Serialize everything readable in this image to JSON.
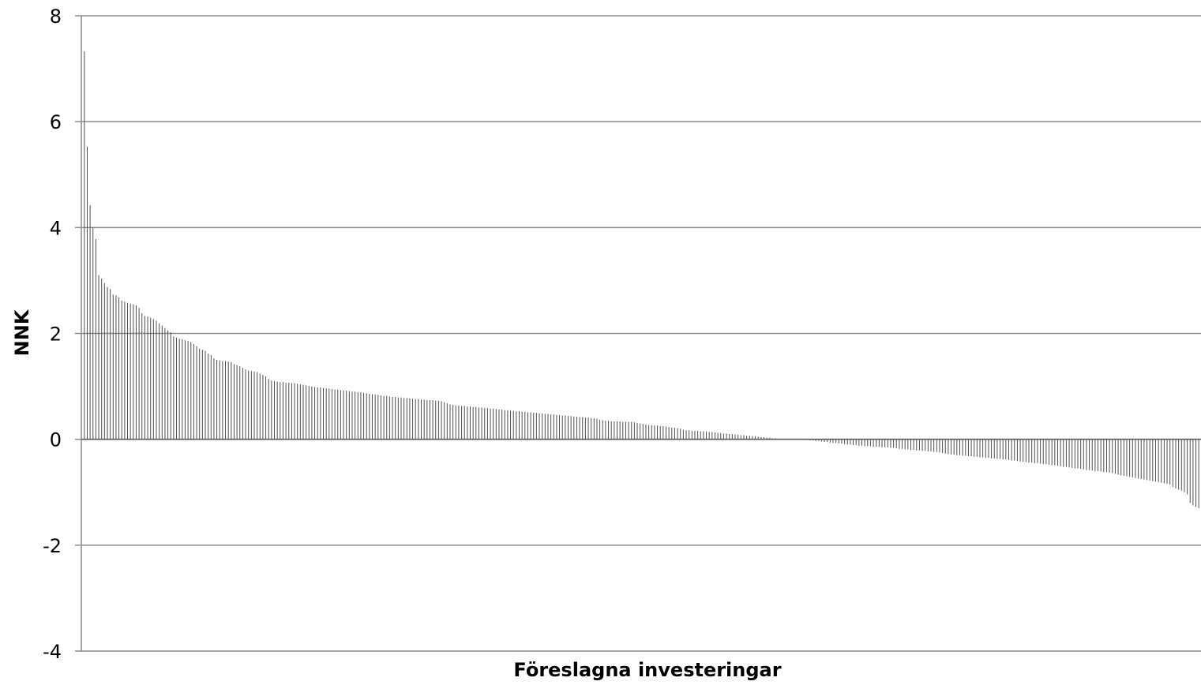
{
  "chart_data": {
    "type": "bar",
    "title": "",
    "xlabel": "Föreslagna investeringar",
    "ylabel": "NNK",
    "ylim": [
      -4,
      8
    ],
    "yticks": [
      8,
      6,
      4,
      2,
      0,
      -2,
      -4
    ],
    "ytick_labels": [
      "8",
      "6",
      "4",
      "2",
      "0",
      "-2",
      "-4"
    ],
    "grid": true,
    "legend": "none",
    "bar_color": "#4d4d4d",
    "grid_color": "#8c8c8c",
    "values": [
      7.33,
      5.53,
      4.42,
      4.0,
      3.78,
      3.1,
      3.04,
      2.95,
      2.88,
      2.84,
      2.73,
      2.72,
      2.68,
      2.62,
      2.6,
      2.58,
      2.56,
      2.55,
      2.53,
      2.48,
      2.38,
      2.33,
      2.32,
      2.3,
      2.27,
      2.24,
      2.19,
      2.15,
      2.1,
      2.06,
      2.02,
      1.94,
      1.92,
      1.9,
      1.89,
      1.87,
      1.86,
      1.84,
      1.8,
      1.76,
      1.71,
      1.69,
      1.67,
      1.62,
      1.59,
      1.53,
      1.5,
      1.49,
      1.48,
      1.48,
      1.47,
      1.46,
      1.42,
      1.4,
      1.38,
      1.35,
      1.32,
      1.3,
      1.29,
      1.28,
      1.27,
      1.24,
      1.22,
      1.19,
      1.14,
      1.11,
      1.1,
      1.09,
      1.08,
      1.08,
      1.07,
      1.07,
      1.06,
      1.06,
      1.05,
      1.04,
      1.03,
      1.02,
      1.01,
      1.0,
      0.99,
      0.98,
      0.98,
      0.97,
      0.96,
      0.96,
      0.95,
      0.94,
      0.94,
      0.93,
      0.92,
      0.92,
      0.91,
      0.9,
      0.9,
      0.89,
      0.89,
      0.88,
      0.87,
      0.86,
      0.85,
      0.85,
      0.84,
      0.83,
      0.82,
      0.82,
      0.81,
      0.8,
      0.8,
      0.79,
      0.79,
      0.78,
      0.78,
      0.77,
      0.77,
      0.76,
      0.76,
      0.75,
      0.75,
      0.74,
      0.74,
      0.74,
      0.73,
      0.73,
      0.72,
      0.7,
      0.68,
      0.66,
      0.65,
      0.64,
      0.64,
      0.63,
      0.63,
      0.62,
      0.62,
      0.61,
      0.61,
      0.6,
      0.6,
      0.59,
      0.59,
      0.58,
      0.58,
      0.57,
      0.56,
      0.56,
      0.55,
      0.55,
      0.54,
      0.54,
      0.53,
      0.53,
      0.52,
      0.52,
      0.51,
      0.51,
      0.5,
      0.5,
      0.49,
      0.49,
      0.48,
      0.48,
      0.47,
      0.47,
      0.46,
      0.46,
      0.45,
      0.45,
      0.44,
      0.44,
      0.43,
      0.43,
      0.42,
      0.42,
      0.41,
      0.41,
      0.4,
      0.4,
      0.39,
      0.37,
      0.36,
      0.35,
      0.35,
      0.34,
      0.34,
      0.34,
      0.34,
      0.33,
      0.33,
      0.33,
      0.33,
      0.32,
      0.31,
      0.3,
      0.29,
      0.28,
      0.27,
      0.27,
      0.26,
      0.26,
      0.25,
      0.25,
      0.24,
      0.23,
      0.22,
      0.22,
      0.21,
      0.2,
      0.18,
      0.17,
      0.17,
      0.16,
      0.16,
      0.16,
      0.15,
      0.15,
      0.15,
      0.14,
      0.14,
      0.13,
      0.12,
      0.12,
      0.11,
      0.11,
      0.1,
      0.1,
      0.09,
      0.09,
      0.08,
      0.08,
      0.07,
      0.07,
      0.06,
      0.06,
      0.05,
      0.04,
      0.04,
      0.03,
      0.03,
      0.02,
      0.02,
      0.01,
      0.01,
      0.0,
      0.0,
      0.0,
      0.0,
      0.0,
      0.0,
      0.0,
      -0.01,
      -0.01,
      -0.02,
      -0.02,
      -0.03,
      -0.03,
      -0.04,
      -0.05,
      -0.05,
      -0.06,
      -0.07,
      -0.07,
      -0.08,
      -0.08,
      -0.09,
      -0.1,
      -0.1,
      -0.11,
      -0.11,
      -0.12,
      -0.12,
      -0.13,
      -0.13,
      -0.13,
      -0.14,
      -0.14,
      -0.14,
      -0.15,
      -0.15,
      -0.15,
      -0.16,
      -0.16,
      -0.17,
      -0.18,
      -0.18,
      -0.19,
      -0.19,
      -0.2,
      -0.2,
      -0.21,
      -0.21,
      -0.22,
      -0.22,
      -0.23,
      -0.23,
      -0.24,
      -0.24,
      -0.25,
      -0.26,
      -0.27,
      -0.28,
      -0.29,
      -0.29,
      -0.3,
      -0.3,
      -0.31,
      -0.31,
      -0.32,
      -0.32,
      -0.33,
      -0.33,
      -0.34,
      -0.34,
      -0.35,
      -0.35,
      -0.36,
      -0.36,
      -0.37,
      -0.37,
      -0.38,
      -0.38,
      -0.39,
      -0.4,
      -0.4,
      -0.41,
      -0.42,
      -0.43,
      -0.43,
      -0.44,
      -0.44,
      -0.45,
      -0.45,
      -0.46,
      -0.47,
      -0.47,
      -0.48,
      -0.49,
      -0.49,
      -0.5,
      -0.51,
      -0.52,
      -0.52,
      -0.53,
      -0.54,
      -0.55,
      -0.55,
      -0.56,
      -0.57,
      -0.58,
      -0.58,
      -0.59,
      -0.6,
      -0.6,
      -0.61,
      -0.62,
      -0.62,
      -0.63,
      -0.64,
      -0.65,
      -0.67,
      -0.68,
      -0.69,
      -0.7,
      -0.71,
      -0.72,
      -0.73,
      -0.74,
      -0.75,
      -0.76,
      -0.77,
      -0.78,
      -0.79,
      -0.8,
      -0.81,
      -0.82,
      -0.83,
      -0.84,
      -0.86,
      -0.9,
      -0.93,
      -0.95,
      -0.97,
      -1.0,
      -1.04,
      -1.2,
      -1.25,
      -1.28,
      -1.3
    ]
  }
}
